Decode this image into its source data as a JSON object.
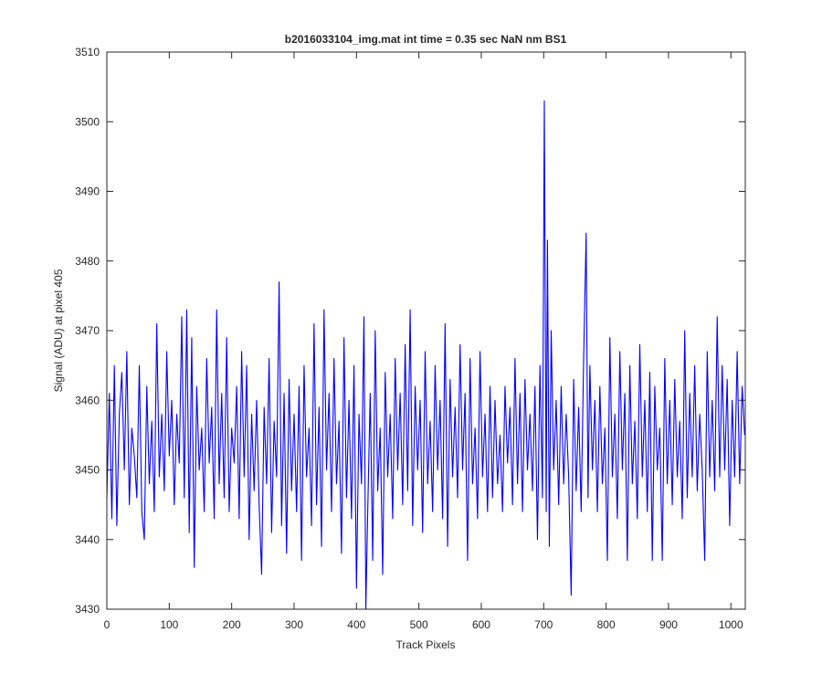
{
  "chart_data": {
    "type": "line",
    "title": "b2016033104_img.mat int time = 0.35 sec  NaN nm BS1",
    "x_label": "Track Pixels",
    "y_label": "Signal (ADU) at pixel 405",
    "xlim": [
      0,
      1023
    ],
    "ylim": [
      3430,
      3510
    ],
    "xticks": [
      0,
      100,
      200,
      300,
      400,
      500,
      600,
      700,
      800,
      900,
      1000
    ],
    "yticks": [
      3430,
      3440,
      3450,
      3460,
      3470,
      3480,
      3490,
      3500,
      3510
    ],
    "grid": false,
    "x": [
      0,
      4,
      8,
      12,
      16,
      20,
      24,
      28,
      32,
      36,
      40,
      44,
      48,
      52,
      56,
      60,
      64,
      68,
      72,
      76,
      80,
      84,
      88,
      92,
      96,
      100,
      104,
      108,
      112,
      116,
      120,
      124,
      128,
      132,
      136,
      140,
      144,
      148,
      152,
      156,
      160,
      164,
      168,
      172,
      176,
      180,
      184,
      188,
      192,
      196,
      200,
      204,
      208,
      212,
      216,
      220,
      224,
      228,
      232,
      236,
      240,
      244,
      248,
      252,
      256,
      260,
      264,
      268,
      272,
      276,
      280,
      284,
      288,
      292,
      296,
      300,
      304,
      308,
      312,
      316,
      320,
      324,
      328,
      332,
      336,
      340,
      344,
      348,
      352,
      356,
      360,
      364,
      368,
      372,
      376,
      380,
      384,
      388,
      392,
      396,
      400,
      404,
      408,
      412,
      415,
      418,
      422,
      426,
      430,
      434,
      438,
      442,
      446,
      450,
      454,
      458,
      462,
      466,
      470,
      474,
      478,
      482,
      486,
      490,
      494,
      498,
      502,
      506,
      510,
      514,
      518,
      522,
      526,
      530,
      534,
      538,
      542,
      546,
      550,
      554,
      558,
      562,
      566,
      570,
      574,
      578,
      582,
      586,
      590,
      594,
      598,
      602,
      606,
      610,
      614,
      618,
      622,
      626,
      630,
      634,
      638,
      642,
      646,
      650,
      654,
      658,
      662,
      666,
      670,
      674,
      678,
      682,
      686,
      690,
      694,
      698,
      701,
      704,
      706,
      709,
      712,
      716,
      720,
      724,
      728,
      732,
      736,
      740,
      744,
      748,
      752,
      756,
      760,
      764,
      768,
      771,
      774,
      778,
      782,
      786,
      790,
      794,
      798,
      802,
      806,
      810,
      814,
      818,
      822,
      826,
      830,
      834,
      838,
      842,
      846,
      850,
      854,
      858,
      862,
      866,
      870,
      874,
      878,
      882,
      886,
      890,
      894,
      898,
      902,
      906,
      910,
      914,
      918,
      922,
      926,
      930,
      934,
      938,
      942,
      946,
      950,
      954,
      958,
      962,
      966,
      970,
      974,
      978,
      982,
      986,
      990,
      994,
      998,
      1002,
      1006,
      1010,
      1014,
      1018,
      1022
    ],
    "series": [
      {
        "name": "signal",
        "color": "#0000ff",
        "values": [
          3446,
          3461,
          3443,
          3465,
          3442,
          3458,
          3464,
          3450,
          3467,
          3445,
          3456,
          3452,
          3446,
          3465,
          3444,
          3440,
          3462,
          3448,
          3457,
          3444,
          3471,
          3449,
          3458,
          3447,
          3467,
          3452,
          3460,
          3445,
          3458,
          3451,
          3472,
          3446,
          3473,
          3441,
          3469,
          3436,
          3462,
          3450,
          3456,
          3444,
          3466,
          3451,
          3459,
          3443,
          3473,
          3448,
          3461,
          3446,
          3469,
          3444,
          3456,
          3451,
          3462,
          3443,
          3467,
          3449,
          3465,
          3440,
          3458,
          3447,
          3460,
          3445,
          3435,
          3459,
          3448,
          3466,
          3441,
          3457,
          3449,
          3477,
          3442,
          3461,
          3438,
          3463,
          3447,
          3458,
          3444,
          3462,
          3437,
          3465,
          3449,
          3456,
          3442,
          3471,
          3445,
          3459,
          3439,
          3473,
          3450,
          3461,
          3444,
          3466,
          3448,
          3457,
          3438,
          3469,
          3446,
          3460,
          3443,
          3465,
          3433,
          3458,
          3448,
          3472,
          3430,
          3444,
          3461,
          3437,
          3470,
          3447,
          3456,
          3435,
          3464,
          3449,
          3458,
          3443,
          3466,
          3450,
          3461,
          3445,
          3468,
          3447,
          3473,
          3442,
          3462,
          3450,
          3460,
          3441,
          3467,
          3448,
          3457,
          3444,
          3465,
          3450,
          3460,
          3443,
          3471,
          3439,
          3463,
          3449,
          3459,
          3446,
          3468,
          3450,
          3461,
          3437,
          3466,
          3448,
          3456,
          3443,
          3467,
          3449,
          3458,
          3444,
          3462,
          3446,
          3460,
          3448,
          3455,
          3444,
          3462,
          3451,
          3459,
          3445,
          3466,
          3448,
          3461,
          3444,
          3463,
          3450,
          3458,
          3447,
          3462,
          3440,
          3465,
          3446,
          3503,
          3444,
          3483,
          3439,
          3470,
          3450,
          3460,
          3445,
          3462,
          3448,
          3458,
          3449,
          3432,
          3463,
          3447,
          3459,
          3444,
          3466,
          3484,
          3446,
          3465,
          3450,
          3460,
          3444,
          3462,
          3448,
          3456,
          3437,
          3469,
          3449,
          3458,
          3443,
          3467,
          3450,
          3461,
          3437,
          3465,
          3448,
          3457,
          3443,
          3468,
          3449,
          3460,
          3444,
          3464,
          3437,
          3462,
          3450,
          3456,
          3437,
          3466,
          3448,
          3460,
          3445,
          3463,
          3449,
          3457,
          3443,
          3470,
          3446,
          3461,
          3449,
          3465,
          3447,
          3458,
          3450,
          3437,
          3467,
          3449,
          3460,
          3447,
          3472,
          3449,
          3465,
          3450,
          3463,
          3442,
          3460,
          3449,
          3467,
          3448,
          3462,
          3455
        ]
      }
    ]
  }
}
